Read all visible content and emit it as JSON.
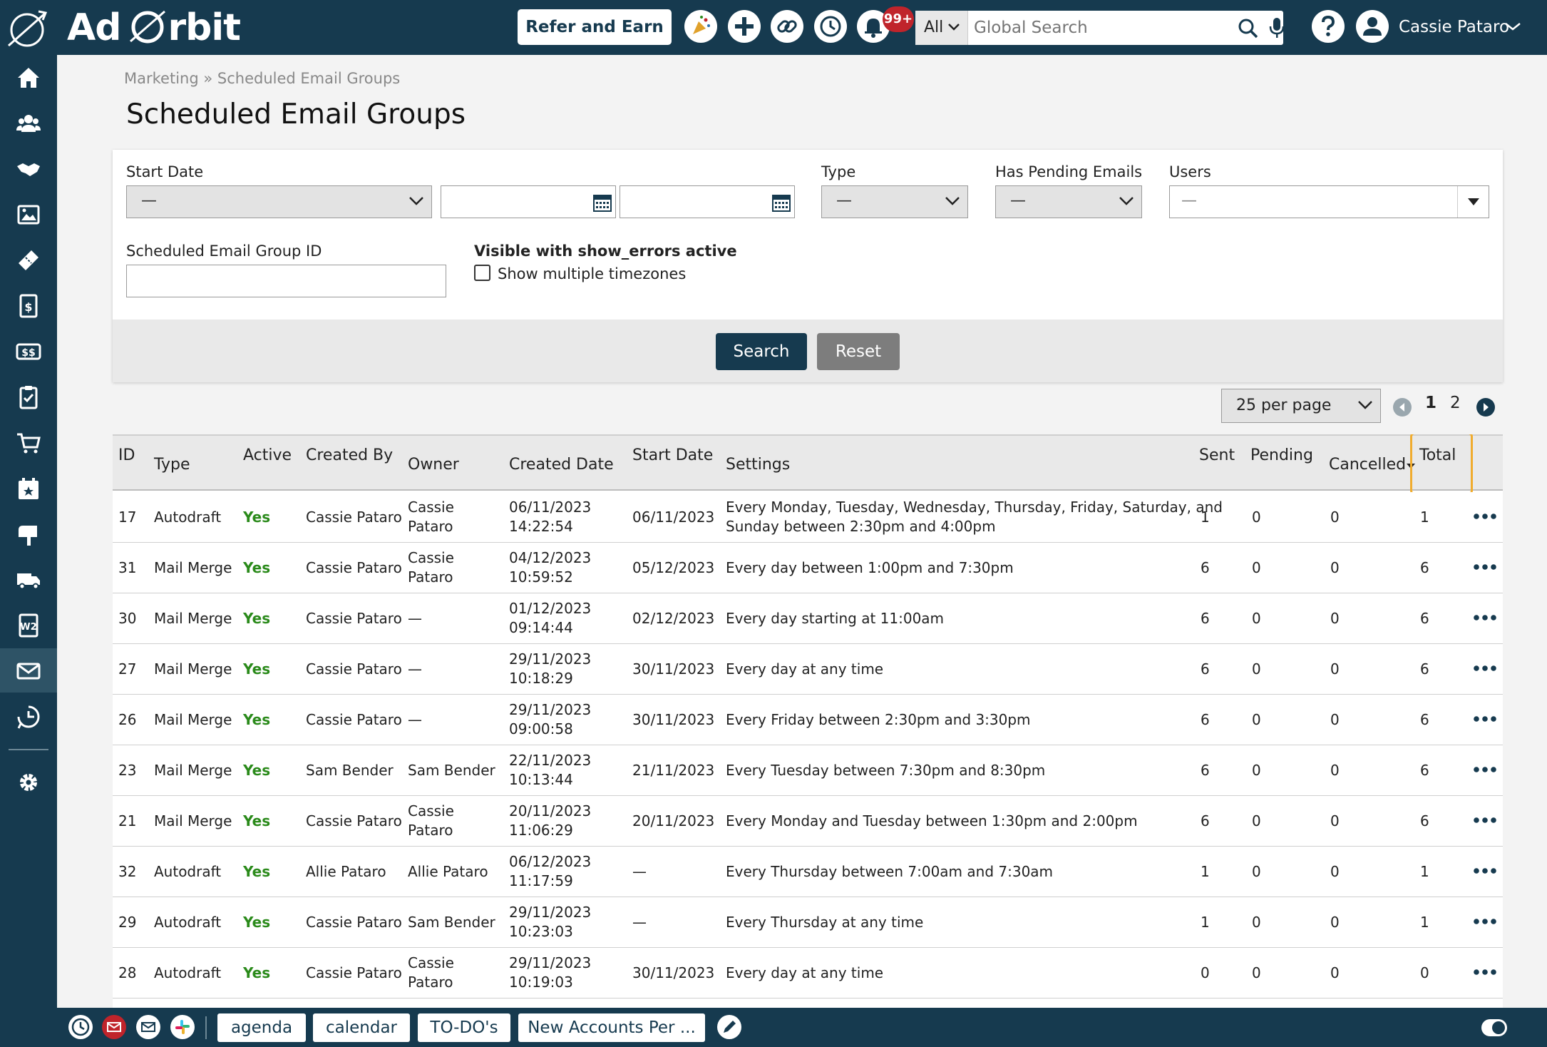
{
  "app": {
    "brand_left": "Ad",
    "brand_right": "rbit",
    "refer_label": "Refer and Earn",
    "notif_count": "99+",
    "search_scope": "All",
    "search_placeholder": "Global Search",
    "user_name": "Cassie Pataro"
  },
  "sidebar": {
    "items": [
      {
        "icon": "home-icon"
      },
      {
        "icon": "contacts-icon"
      },
      {
        "icon": "handshake-icon"
      },
      {
        "icon": "media-icon"
      },
      {
        "icon": "ticket-icon"
      },
      {
        "icon": "invoice-icon"
      },
      {
        "icon": "payments-icon"
      },
      {
        "icon": "clipboard-icon"
      },
      {
        "icon": "cart-icon"
      },
      {
        "icon": "calendar-icon"
      },
      {
        "icon": "mailbox-icon"
      },
      {
        "icon": "truck-icon"
      },
      {
        "icon": "w2-icon"
      },
      {
        "icon": "email-icon"
      },
      {
        "icon": "analytics-icon"
      },
      {
        "icon": "settings-icon"
      }
    ],
    "active": "email-icon"
  },
  "breadcrumb": {
    "parent": "Marketing",
    "separator": "»",
    "current": "Scheduled Email Groups"
  },
  "page_title": "Scheduled Email Groups",
  "filters": {
    "start_date_label": "Start Date",
    "start_date_value": "—",
    "type_label": "Type",
    "type_value": "—",
    "pending_label": "Has Pending Emails",
    "pending_value": "—",
    "users_label": "Users",
    "users_value": "—",
    "group_id_label": "Scheduled Email Group ID",
    "show_errors_label": "Visible with show_errors active",
    "multi_tz_label": "Show multiple timezones",
    "search_label": "Search",
    "reset_label": "Reset"
  },
  "pagination": {
    "per_page": "25 per page",
    "pages": [
      "1",
      "2"
    ],
    "current_page": "1"
  },
  "table": {
    "columns": [
      "ID",
      "Type",
      "Active",
      "Created By",
      "Owner",
      "Created Date",
      "Start Date",
      "Settings",
      "Sent",
      "Pending",
      "Cancelled",
      "Total"
    ],
    "rows": [
      {
        "id": "17",
        "type": "Autodraft",
        "active": "Yes",
        "created_by": "Cassie Pataro",
        "owner": [
          "Cassie",
          "Pataro"
        ],
        "created_date": [
          "06/11/2023",
          "14:22:54"
        ],
        "start_date": "06/11/2023",
        "settings": [
          "Every Monday, Tuesday, Wednesday, Thursday, Friday, Saturday, and",
          "Sunday between 2:30pm and 4:00pm"
        ],
        "sent": "1",
        "pending": "0",
        "cancelled": "0",
        "total": "1"
      },
      {
        "id": "31",
        "type": "Mail Merge",
        "active": "Yes",
        "created_by": "Cassie Pataro",
        "owner": [
          "Cassie",
          "Pataro"
        ],
        "created_date": [
          "04/12/2023",
          "10:59:52"
        ],
        "start_date": "05/12/2023",
        "settings": [
          "Every day between 1:00pm and 7:30pm"
        ],
        "sent": "6",
        "pending": "0",
        "cancelled": "0",
        "total": "6"
      },
      {
        "id": "30",
        "type": "Mail Merge",
        "active": "Yes",
        "created_by": "Cassie Pataro",
        "owner": [
          "—"
        ],
        "created_date": [
          "01/12/2023",
          "09:14:44"
        ],
        "start_date": "02/12/2023",
        "settings": [
          "Every day starting at 11:00am"
        ],
        "sent": "6",
        "pending": "0",
        "cancelled": "0",
        "total": "6"
      },
      {
        "id": "27",
        "type": "Mail Merge",
        "active": "Yes",
        "created_by": "Cassie Pataro",
        "owner": [
          "—"
        ],
        "created_date": [
          "29/11/2023",
          "10:18:29"
        ],
        "start_date": "30/11/2023",
        "settings": [
          "Every day at any time"
        ],
        "sent": "6",
        "pending": "0",
        "cancelled": "0",
        "total": "6"
      },
      {
        "id": "26",
        "type": "Mail Merge",
        "active": "Yes",
        "created_by": "Cassie Pataro",
        "owner": [
          "—"
        ],
        "created_date": [
          "29/11/2023",
          "09:00:58"
        ],
        "start_date": "30/11/2023",
        "settings": [
          "Every Friday between 2:30pm and 3:30pm"
        ],
        "sent": "6",
        "pending": "0",
        "cancelled": "0",
        "total": "6"
      },
      {
        "id": "23",
        "type": "Mail Merge",
        "active": "Yes",
        "created_by": "Sam Bender",
        "owner": [
          "Sam Bender"
        ],
        "created_date": [
          "22/11/2023",
          "10:13:44"
        ],
        "start_date": "21/11/2023",
        "settings": [
          "Every Tuesday between 7:30pm and 8:30pm"
        ],
        "sent": "6",
        "pending": "0",
        "cancelled": "0",
        "total": "6"
      },
      {
        "id": "21",
        "type": "Mail Merge",
        "active": "Yes",
        "created_by": "Cassie Pataro",
        "owner": [
          "Cassie",
          "Pataro"
        ],
        "created_date": [
          "20/11/2023",
          "11:06:29"
        ],
        "start_date": "20/11/2023",
        "settings": [
          "Every Monday and Tuesday between 1:30pm and 2:00pm"
        ],
        "sent": "6",
        "pending": "0",
        "cancelled": "0",
        "total": "6"
      },
      {
        "id": "32",
        "type": "Autodraft",
        "active": "Yes",
        "created_by": "Allie Pataro",
        "owner": [
          "Allie Pataro"
        ],
        "created_date": [
          "06/12/2023",
          "11:17:59"
        ],
        "start_date": "—",
        "settings": [
          "Every Thursday between 7:00am and 7:30am"
        ],
        "sent": "1",
        "pending": "0",
        "cancelled": "0",
        "total": "1"
      },
      {
        "id": "29",
        "type": "Autodraft",
        "active": "Yes",
        "created_by": "Cassie Pataro",
        "owner": [
          "Sam Bender"
        ],
        "created_date": [
          "29/11/2023",
          "10:23:03"
        ],
        "start_date": "—",
        "settings": [
          "Every Thursday at any time"
        ],
        "sent": "1",
        "pending": "0",
        "cancelled": "0",
        "total": "1"
      },
      {
        "id": "28",
        "type": "Autodraft",
        "active": "Yes",
        "created_by": "Cassie Pataro",
        "owner": [
          "Cassie",
          "Pataro"
        ],
        "created_date": [
          "29/11/2023",
          "10:19:03"
        ],
        "start_date": "30/11/2023",
        "settings": [
          "Every day at any time"
        ],
        "sent": "0",
        "pending": "0",
        "cancelled": "0",
        "total": "0"
      }
    ]
  },
  "bottom_bar": {
    "tabs": [
      "agenda",
      "calendar",
      "TO-DO's",
      "New Accounts Per ..."
    ]
  },
  "colors": {
    "navy": "#163a4f",
    "yes_green": "#2a8a1a",
    "highlight": "#f0ac2e",
    "badge_red": "#c0242b"
  }
}
